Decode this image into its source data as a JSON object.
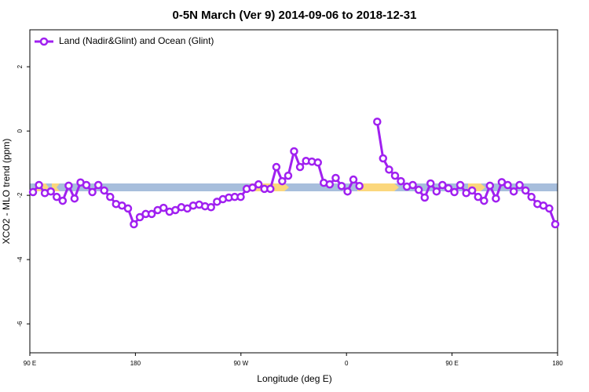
{
  "chart_data": {
    "type": "line",
    "title": "0-5N March (Ver 9)   2014-09-06 to 2018-12-31",
    "x_label": "Longitude (deg E)",
    "y_label": "XCO2 - MLO trend (ppm)",
    "x": [
      92.7,
      97.8,
      102.8,
      107.9,
      112.9,
      118.0,
      123.1,
      128.1,
      133.2,
      138.2,
      143.3,
      148.4,
      153.4,
      158.5,
      163.5,
      168.6,
      173.7,
      178.7,
      183.8,
      188.8,
      193.9,
      199.0,
      204.0,
      209.1,
      214.1,
      219.2,
      224.3,
      229.3,
      234.4,
      239.4,
      244.5,
      249.6,
      254.6,
      259.7,
      264.7,
      269.8,
      274.9,
      279.9,
      285.0,
      290.0,
      295.1,
      300.2,
      305.2,
      310.3,
      315.3,
      320.4,
      325.5,
      330.5,
      335.6,
      340.6,
      345.7,
      350.8,
      355.8,
      360.9,
      365.9,
      371.0,
      376.1,
      381.1,
      386.2,
      391.2,
      396.3,
      401.4,
      406.4,
      411.5,
      416.5,
      421.6,
      426.7,
      431.7,
      436.8,
      441.8,
      446.9,
      452.0,
      457.0,
      462.1,
      467.1,
      472.2,
      477.3,
      482.3,
      487.4,
      492.4,
      497.5,
      502.6,
      507.6,
      512.7,
      517.7,
      522.8,
      527.9,
      532.9,
      538.0
    ],
    "series": [
      {
        "name": "Land (Nadir&Glint) and Ocean (Glint)",
        "color": "#a020f0",
        "values": [
          -1.9,
          -1.68,
          -1.93,
          -1.88,
          -2.05,
          -2.17,
          -1.7,
          -2.1,
          -1.6,
          -1.68,
          -1.9,
          -1.68,
          -1.85,
          -2.05,
          -2.27,
          -2.32,
          -2.41,
          -2.9,
          -2.68,
          -2.58,
          -2.58,
          -2.46,
          -2.39,
          -2.51,
          -2.46,
          -2.37,
          -2.41,
          -2.32,
          -2.29,
          -2.34,
          -2.37,
          -2.2,
          -2.12,
          -2.07,
          -2.05,
          -2.05,
          -1.8,
          -1.76,
          -1.66,
          -1.8,
          -1.8,
          -1.12,
          -1.56,
          -1.39,
          -0.63,
          -1.12,
          -0.93,
          -0.95,
          -0.98,
          -1.61,
          -1.66,
          -1.46,
          -1.71,
          -1.88,
          -1.51,
          -1.71,
          null,
          null,
          0.29,
          -0.85,
          -1.2,
          -1.39,
          -1.56,
          -1.73,
          -1.68,
          -1.83,
          -2.07,
          -1.63,
          -1.88,
          -1.68,
          -1.78,
          -1.9,
          -1.68,
          -1.93,
          -1.85,
          -2.05,
          -2.17,
          -1.7,
          -2.1,
          -1.59,
          -1.68,
          -1.88,
          -1.68,
          -1.85,
          -2.05,
          -2.27,
          -2.32,
          -2.41,
          -2.9
        ]
      }
    ],
    "xlim": [
      90,
      540
    ],
    "xticks": [
      {
        "value": 90,
        "label": "90 E"
      },
      180,
      {
        "value": 270,
        "label": "90 W"
      },
      {
        "value": 360,
        "label": "0"
      },
      {
        "value": 450,
        "label": "90 E"
      },
      {
        "value": 540,
        "label": "180"
      }
    ],
    "ylim": [
      -6.9,
      3.15
    ],
    "yticks": [
      -6,
      -4,
      -2,
      0,
      2
    ],
    "legend": "top-left"
  }
}
